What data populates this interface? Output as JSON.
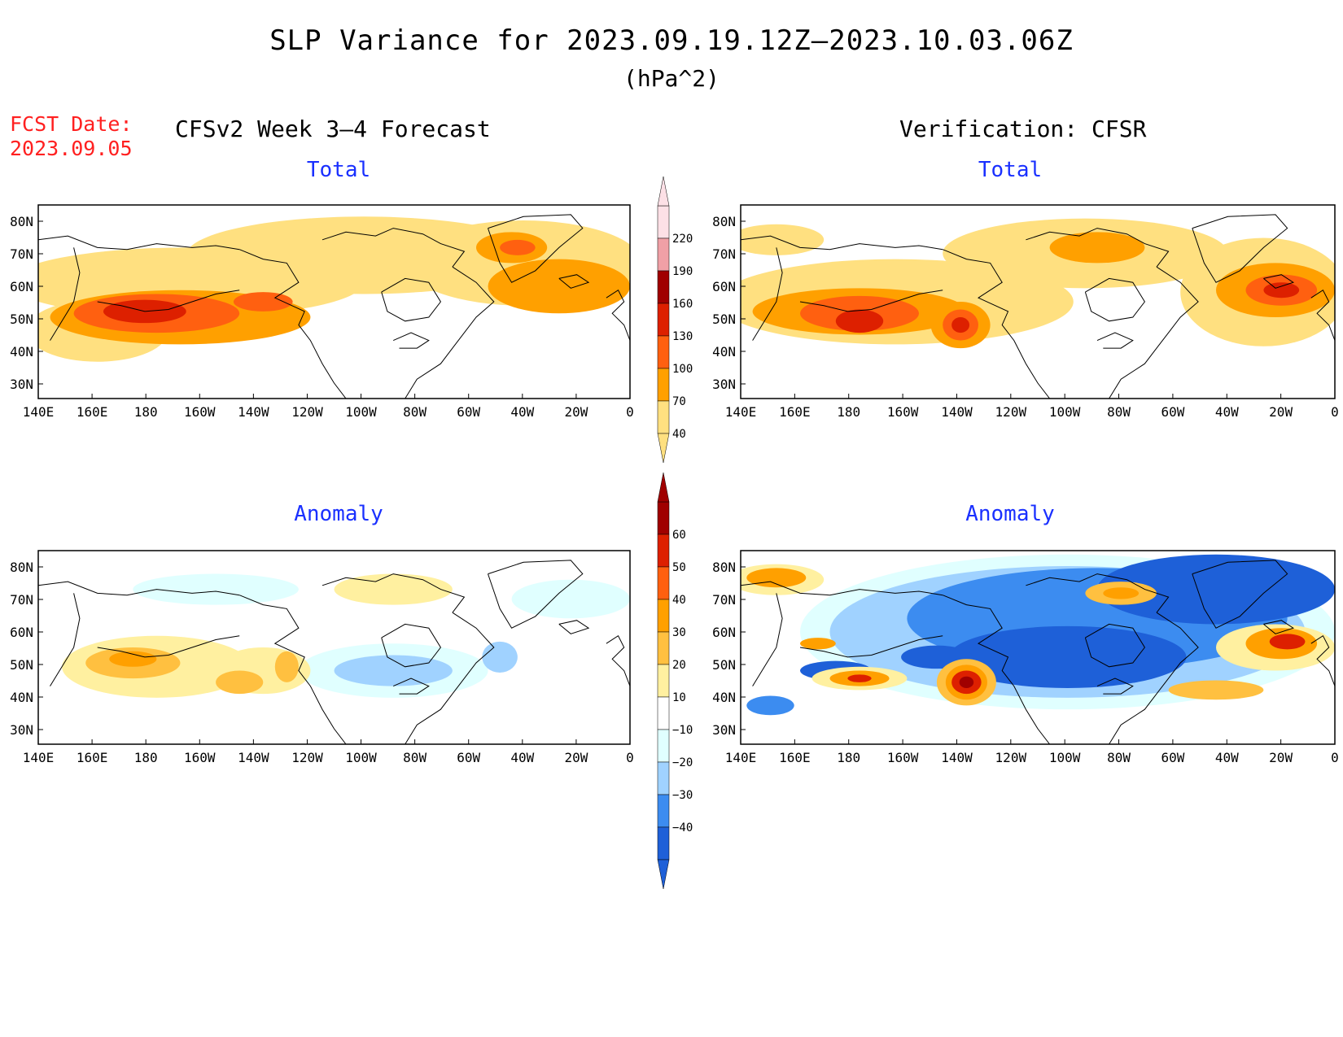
{
  "title": "SLP Variance for 2023.09.19.12Z—2023.10.03.06Z",
  "units": "(hPa^2)",
  "fcst_label": "FCST Date:",
  "fcst_date": "2023.09.05",
  "subtitle_left": "CFSv2 Week 3—4 Forecast",
  "subtitle_right": "Verification: CFSR",
  "panels": [
    {
      "id": "fc-total",
      "title": "Total"
    },
    {
      "id": "vf-total",
      "title": "Total"
    },
    {
      "id": "fc-anom",
      "title": "Anomaly"
    },
    {
      "id": "vf-anom",
      "title": "Anomaly"
    }
  ],
  "lon_ticks": [
    "140E",
    "160E",
    "180",
    "160W",
    "140W",
    "120W",
    "100W",
    "80W",
    "60W",
    "40W",
    "20W",
    "0"
  ],
  "lat_ticks": [
    "80N",
    "70N",
    "60N",
    "50N",
    "40N",
    "30N"
  ],
  "colorbar_total": {
    "labels": [
      "220",
      "190",
      "160",
      "130",
      "100",
      "70",
      "40"
    ],
    "colors": [
      "#fde0e6",
      "#f0a0a6",
      "#a00000",
      "#dd2000",
      "#ff6010",
      "#ffa000",
      "#ffe080"
    ]
  },
  "colorbar_anom": {
    "labels": [
      "60",
      "50",
      "40",
      "30",
      "20",
      "10",
      "−10",
      "−20",
      "−30",
      "−40"
    ],
    "colors": [
      "#a00000",
      "#dd2000",
      "#ff6010",
      "#ffa000",
      "#ffc040",
      "#fff0a0",
      "#ffffff",
      "#e0ffff",
      "#a0d2ff",
      "#3c8cf0",
      "#1e60d8"
    ]
  },
  "colors": {
    "y1": "#ffe080",
    "o1": "#ffa000",
    "o2": "#ff6010",
    "r1": "#dd2000",
    "r2": "#a00000",
    "a10": "#fff0a0",
    "a20": "#ffc040",
    "b10": "#e0ffff",
    "b20": "#a0d2ff",
    "b30": "#3c8cf0",
    "b40": "#1e60d8",
    "title_blue": "#1a30ff",
    "fcst_red": "#ff2020"
  }
}
